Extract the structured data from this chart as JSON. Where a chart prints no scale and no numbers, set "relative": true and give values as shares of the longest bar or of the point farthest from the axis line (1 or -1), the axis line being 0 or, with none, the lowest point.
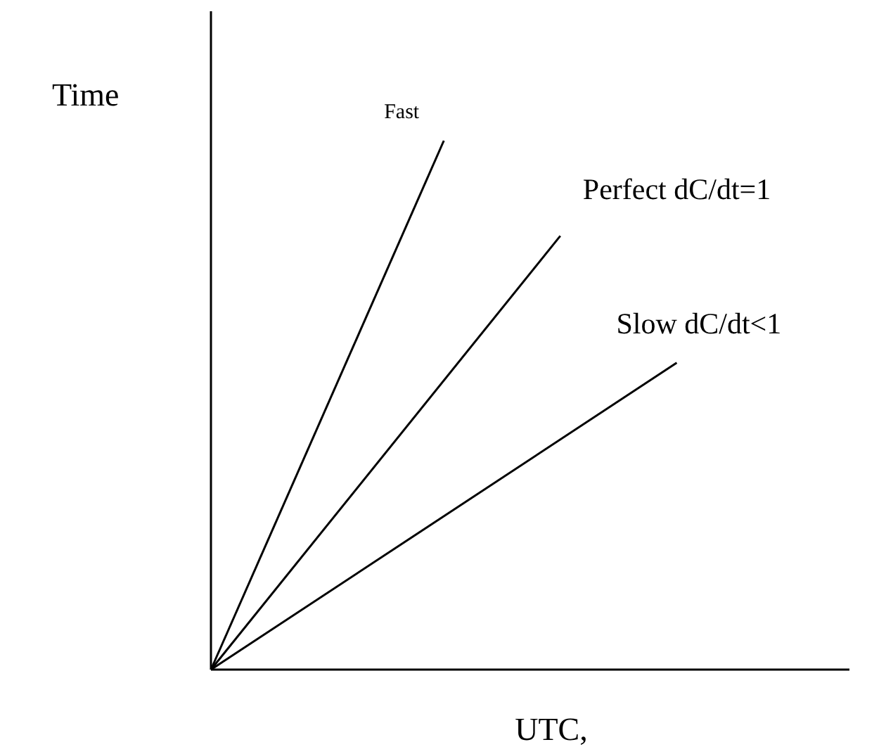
{
  "chart_data": {
    "type": "line",
    "relative": true,
    "xlabel": "UTC,",
    "ylabel": "Time",
    "marker": "none",
    "line_style": "solid",
    "categories": [
      null,
      null,
      null,
      null,
      null,
      null,
      null,
      null,
      null
    ],
    "series": [
      {
        "name": "Fast",
        "color": "#000000",
        "values": [
          0,
          null,
          null,
          null,
          1,
          null,
          null,
          null,
          null
        ]
      },
      {
        "name": "Perfect dC/dt=1",
        "color": "#000000",
        "values": [
          0,
          null,
          null,
          null,
          null,
          null,
          0.82,
          null,
          null
        ]
      },
      {
        "name": "Slow dC/dt<1",
        "color": "#000000",
        "values": [
          0,
          null,
          null,
          null,
          null,
          null,
          null,
          null,
          0.58
        ]
      }
    ]
  }
}
